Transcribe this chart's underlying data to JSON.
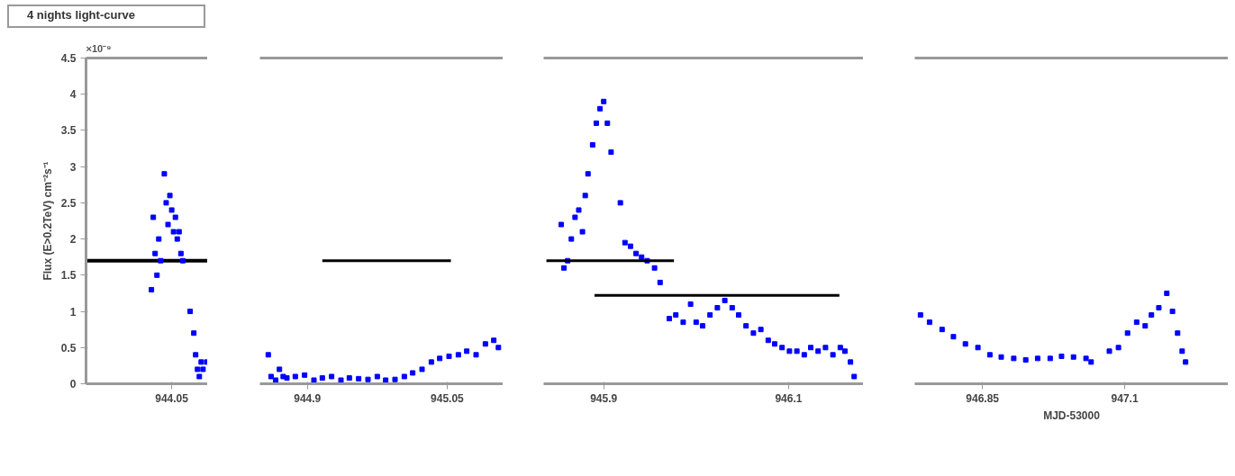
{
  "chart_data": [
    {
      "type": "scatter",
      "title": "4 nights light-curve",
      "ylabel": "Flux (E>0.2TeV) cm⁻²s⁻¹",
      "annotations": [
        "×10⁻⁹"
      ],
      "categories": [
        null,
        null,
        null,
        null,
        null,
        null,
        null,
        null,
        null,
        null,
        null,
        null,
        null,
        null,
        null,
        null,
        null,
        null,
        null,
        null,
        null,
        null,
        null,
        null,
        null,
        null,
        null,
        null,
        null,
        null,
        null,
        null,
        null,
        null,
        null,
        null,
        null,
        null,
        null,
        null,
        null,
        null,
        null,
        null,
        null,
        null,
        "944.05",
        null,
        null,
        null,
        null,
        null,
        null,
        null,
        null,
        null,
        null,
        null,
        null,
        null,
        null,
        null,
        null,
        null,
        null,
        null
      ],
      "ref_lines": [
        {
          "axis": "y",
          "value": 1.7,
          "color": "#000000"
        }
      ],
      "ylim": [
        0,
        4.5
      ],
      "yticks": [
        0,
        0.5,
        1,
        1.5,
        2,
        2.5,
        3,
        3.5,
        4,
        4.5
      ],
      "series": [
        {
          "color": "#0000ff",
          "marker": "square",
          "values": [
            null,
            null,
            null,
            null,
            null,
            null,
            null,
            null,
            null,
            null,
            null,
            null,
            null,
            null,
            null,
            null,
            null,
            null,
            null,
            null,
            null,
            null,
            null,
            null,
            null,
            null,
            null,
            null,
            null,
            null,
            null,
            null,
            null,
            null,
            null,
            1.3,
            2.3,
            1.8,
            1.5,
            2.0,
            1.7,
            null,
            2.9,
            2.5,
            2.2,
            2.6,
            2.4,
            2.1,
            2.3,
            2.0,
            2.1,
            1.8,
            1.7,
            null,
            null,
            null,
            1.0,
            null,
            0.7,
            0.4,
            0.2,
            0.1,
            0.3,
            0.2,
            null,
            0.3
          ]
        }
      ]
    },
    {
      "type": "scatter",
      "tick_labels": "x",
      "xlim": [
        944.849,
        945.11
      ],
      "xticks": [
        944.9,
        945.05
      ],
      "ylim": [
        0,
        4.5
      ],
      "yticks": [
        0,
        0.5,
        1,
        1.5,
        2,
        2.5,
        3,
        3.5,
        4,
        4.5
      ],
      "series": [
        {
          "color": "#0000ff",
          "marker": "square",
          "x": [
            944.858,
            944.861,
            944.866,
            944.87,
            944.874,
            944.878,
            944.887,
            944.897,
            944.907,
            944.916,
            944.926,
            944.936,
            944.945,
            944.955,
            944.965,
            944.975,
            944.984,
            944.994,
            945.004,
            945.013,
            945.023,
            945.033,
            945.042,
            945.052,
            945.062,
            945.071,
            945.081,
            945.091,
            945.1,
            945.105
          ],
          "values": [
            0.4,
            0.1,
            0.05,
            0.2,
            0.1,
            0.08,
            0.1,
            0.12,
            0.05,
            0.08,
            0.1,
            0.05,
            0.08,
            0.07,
            0.06,
            0.1,
            0.05,
            0.06,
            0.1,
            0.15,
            0.2,
            0.3,
            0.35,
            0.38,
            0.4,
            0.45,
            0.4,
            0.55,
            0.6,
            0.5
          ]
        },
        {
          "type": "line",
          "color": "#000000",
          "x": [
            944.916,
            945.054
          ],
          "values": [
            1.7,
            1.7
          ]
        }
      ]
    },
    {
      "type": "scatter",
      "tick_labels": "x",
      "xlim": [
        945.835,
        946.181
      ],
      "xticks": [
        945.9,
        946.1
      ],
      "ylim": [
        0,
        4.5
      ],
      "yticks": [
        0,
        0.5,
        1,
        1.5,
        2,
        2.5,
        3,
        3.5,
        4,
        4.5
      ],
      "series": [
        {
          "color": "#0000ff",
          "marker": "square",
          "x": [
            945.854,
            945.857,
            945.861,
            945.865,
            945.869,
            945.873,
            945.877,
            945.88,
            945.883,
            945.888,
            945.892,
            945.896,
            945.9,
            945.904,
            945.908,
            945.918,
            945.923,
            945.929,
            945.935,
            945.941,
            945.947,
            945.955,
            945.961,
            945.971,
            945.978,
            945.986,
            945.994,
            946.0,
            946.007,
            946.015,
            946.023,
            946.031,
            946.039,
            946.046,
            946.054,
            946.062,
            946.07,
            946.078,
            946.085,
            946.093,
            946.101,
            946.109,
            946.117,
            946.124,
            946.132,
            946.14,
            946.148,
            946.156,
            946.161,
            946.167,
            946.171
          ],
          "values": [
            2.2,
            1.6,
            1.7,
            2.0,
            2.3,
            2.4,
            2.1,
            2.6,
            2.9,
            3.3,
            3.6,
            3.8,
            3.9,
            3.6,
            3.2,
            2.5,
            1.95,
            1.9,
            1.8,
            1.75,
            1.7,
            1.6,
            1.4,
            0.9,
            0.95,
            0.85,
            1.1,
            0.85,
            0.8,
            0.95,
            1.05,
            1.15,
            1.05,
            0.95,
            0.8,
            0.7,
            0.75,
            0.6,
            0.55,
            0.5,
            0.45,
            0.45,
            0.4,
            0.5,
            0.45,
            0.5,
            0.4,
            0.5,
            0.45,
            0.3,
            0.1
          ]
        },
        {
          "type": "line",
          "color": "#000000",
          "x": [
            945.838,
            945.976
          ],
          "values": [
            1.7,
            1.7
          ]
        },
        {
          "type": "line",
          "color": "#000000",
          "x": [
            945.89,
            946.155
          ],
          "values": [
            1.22,
            1.22
          ]
        }
      ]
    },
    {
      "type": "scatter",
      "tick_labels": "x",
      "xlabel": "MJD-53000",
      "xlim": [
        946.731,
        947.282
      ],
      "xticks": [
        946.85,
        947.1
      ],
      "ylim": [
        0,
        4.5
      ],
      "yticks": [
        0,
        0.5,
        1,
        1.5,
        2,
        2.5,
        3,
        3.5,
        4,
        4.5
      ],
      "series": [
        {
          "color": "#0000ff",
          "marker": "square",
          "x": [
            946.741,
            946.757,
            946.779,
            946.799,
            946.82,
            946.842,
            946.863,
            946.883,
            946.905,
            946.926,
            946.947,
            946.969,
            946.989,
            947.01,
            947.032,
            947.041,
            947.073,
            947.089,
            947.105,
            947.121,
            947.136,
            947.147,
            947.16,
            947.174,
            947.184,
            947.193,
            947.201,
            947.207
          ],
          "values": [
            0.95,
            0.85,
            0.75,
            0.65,
            0.55,
            0.5,
            0.4,
            0.37,
            0.35,
            0.33,
            0.35,
            0.35,
            0.38,
            0.37,
            0.35,
            0.3,
            0.45,
            0.5,
            0.7,
            0.85,
            0.8,
            0.95,
            1.05,
            1.25,
            1.0,
            0.7,
            0.45,
            0.3
          ]
        }
      ]
    }
  ]
}
